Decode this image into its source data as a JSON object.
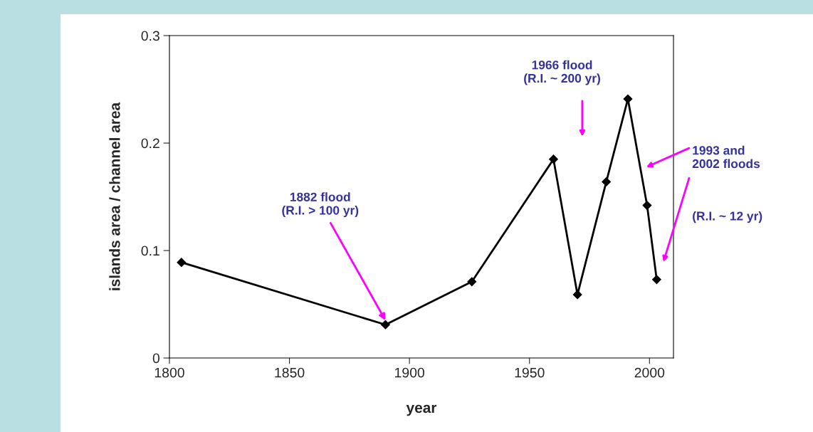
{
  "chart_data": {
    "type": "line",
    "xlabel": "year",
    "ylabel": "islands area / channel area",
    "x": [
      1805,
      1890,
      1926,
      1960,
      1970,
      1982,
      1991,
      1999,
      2003
    ],
    "series": [
      {
        "color": "#000000",
        "values": [
          0.089,
          0.031,
          0.071,
          0.185,
          0.059,
          0.164,
          0.241,
          0.142,
          0.073
        ]
      }
    ],
    "xlim": [
      1800,
      2010
    ],
    "xticks": [
      1800,
      1850,
      1900,
      1950,
      2000
    ],
    "ylim": [
      0,
      0.3
    ],
    "yticks": [
      0,
      0.1,
      0.2,
      0.3
    ],
    "marker": "diamond",
    "line_style": "solid",
    "grid": false,
    "annotations": [
      {
        "text": "1882 flood\n(R.I. > 100 yr)",
        "x": 1890,
        "y": 0.035
      },
      "1966 flood\n(R.I. ~ 200 yr)",
      "1993 and\n2002 floods",
      "(R.I. ~ 12 yr)"
    ]
  }
}
